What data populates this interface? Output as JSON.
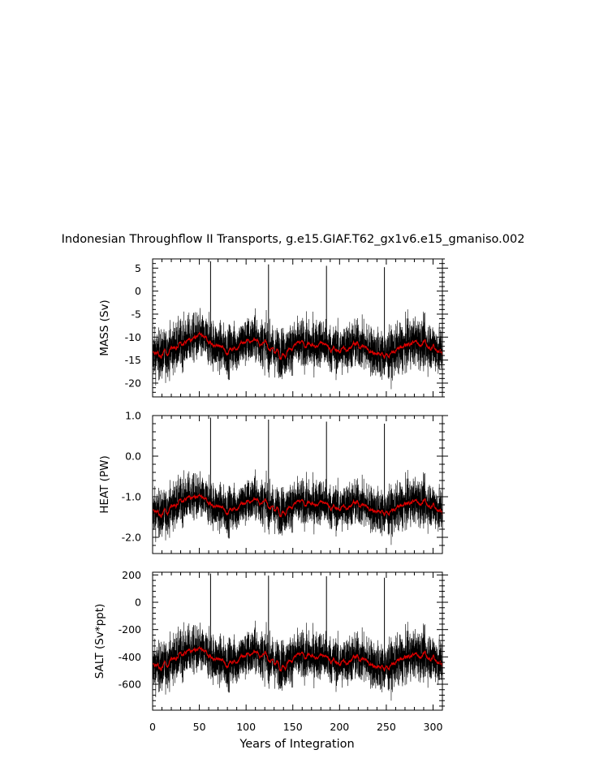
{
  "figure": {
    "title": "Indonesian Throughflow II Transports, g.e15.GIAF.T62_gx1v6.e15_gmaniso.002",
    "xlabel": "Years of Integration"
  },
  "colors": {
    "raw": "#000000",
    "smooth": "#dd0000",
    "axis": "#000000"
  },
  "chart_data": [
    {
      "type": "line",
      "ylabel": "MASS (Sv)",
      "xlim": [
        0,
        310
      ],
      "ylim": [
        -23,
        7
      ],
      "yticks": [
        5,
        0,
        -5,
        -10,
        -15,
        -20
      ],
      "ytick_labels": [
        "5",
        "0",
        "-5",
        "-10",
        "-15",
        "-20"
      ],
      "xticks": [
        0,
        50,
        100,
        150,
        200,
        250,
        300
      ],
      "mean": -12.2,
      "noise_amplitude": 4.2,
      "spikes": [
        {
          "x": 62,
          "y": 6.5
        },
        {
          "x": 124,
          "y": 5.8
        },
        {
          "x": 186,
          "y": 5.5
        },
        {
          "x": 248,
          "y": 5.2
        }
      ],
      "smoothed_trend": {
        "x": [
          0,
          10,
          20,
          30,
          40,
          50,
          60,
          70,
          80,
          90,
          100,
          110,
          120,
          130,
          140,
          150,
          160,
          170,
          180,
          190,
          200,
          210,
          220,
          230,
          240,
          250,
          260,
          270,
          280,
          290,
          300,
          310
        ],
        "y": [
          -13.5,
          -14,
          -12.5,
          -11.5,
          -10.5,
          -10,
          -11,
          -12,
          -13,
          -12,
          -11,
          -10.5,
          -11.5,
          -13,
          -13.5,
          -12,
          -11.5,
          -12,
          -11,
          -12.5,
          -13,
          -12,
          -11.5,
          -12.5,
          -13.5,
          -14,
          -13,
          -12,
          -11,
          -11.5,
          -12,
          -13.5
        ]
      },
      "series": [
        {
          "values": "monthly transport (black)"
        },
        {
          "values": "smoothed (red)"
        }
      ]
    },
    {
      "type": "line",
      "ylabel": "HEAT (PW)",
      "xlim": [
        0,
        310
      ],
      "ylim": [
        -2.4,
        1.0
      ],
      "yticks": [
        1.0,
        0.0,
        -1.0,
        -2.0
      ],
      "ytick_labels": [
        "1.0",
        "0.0",
        "-1.0",
        "-2.0"
      ],
      "xticks": [
        0,
        50,
        100,
        150,
        200,
        250,
        300
      ],
      "mean": -1.2,
      "noise_amplitude": 0.45,
      "spikes": [
        {
          "x": 62,
          "y": 0.95
        },
        {
          "x": 124,
          "y": 0.9
        },
        {
          "x": 186,
          "y": 0.85
        },
        {
          "x": 248,
          "y": 0.8
        }
      ],
      "smoothed_trend": {
        "x": [
          0,
          10,
          20,
          30,
          40,
          50,
          60,
          70,
          80,
          90,
          100,
          110,
          120,
          130,
          140,
          150,
          160,
          170,
          180,
          190,
          200,
          210,
          220,
          230,
          240,
          250,
          260,
          270,
          280,
          290,
          300,
          310
        ],
        "y": [
          -1.35,
          -1.45,
          -1.25,
          -1.1,
          -1.0,
          -1.05,
          -1.15,
          -1.25,
          -1.35,
          -1.25,
          -1.15,
          -1.05,
          -1.15,
          -1.3,
          -1.35,
          -1.2,
          -1.15,
          -1.2,
          -1.1,
          -1.25,
          -1.3,
          -1.2,
          -1.15,
          -1.25,
          -1.35,
          -1.4,
          -1.3,
          -1.2,
          -1.1,
          -1.15,
          -1.2,
          -1.4
        ]
      }
    },
    {
      "type": "line",
      "ylabel": "SALT (Sv*ppt)",
      "xlim": [
        0,
        310
      ],
      "ylim": [
        -790,
        220
      ],
      "yticks": [
        200,
        0,
        -200,
        -400,
        -600
      ],
      "ytick_labels": [
        "200",
        "0",
        "-200",
        "-400",
        "-600"
      ],
      "xticks": [
        0,
        50,
        100,
        150,
        200,
        250,
        300
      ],
      "xtick_labels": [
        "0",
        "50",
        "100",
        "150",
        "200",
        "250",
        "300"
      ],
      "mean": -420,
      "noise_amplitude": 140,
      "spikes": [
        {
          "x": 62,
          "y": 210
        },
        {
          "x": 124,
          "y": 195
        },
        {
          "x": 186,
          "y": 190
        },
        {
          "x": 248,
          "y": 180
        }
      ],
      "smoothed_trend": {
        "x": [
          0,
          10,
          20,
          30,
          40,
          50,
          60,
          70,
          80,
          90,
          100,
          110,
          120,
          130,
          140,
          150,
          160,
          170,
          180,
          190,
          200,
          210,
          220,
          230,
          240,
          250,
          260,
          270,
          280,
          290,
          300,
          310
        ],
        "y": [
          -460,
          -480,
          -420,
          -380,
          -350,
          -360,
          -390,
          -420,
          -450,
          -420,
          -390,
          -360,
          -390,
          -440,
          -460,
          -410,
          -390,
          -400,
          -380,
          -420,
          -450,
          -420,
          -400,
          -430,
          -470,
          -480,
          -440,
          -410,
          -380,
          -390,
          -400,
          -460
        ]
      }
    }
  ]
}
